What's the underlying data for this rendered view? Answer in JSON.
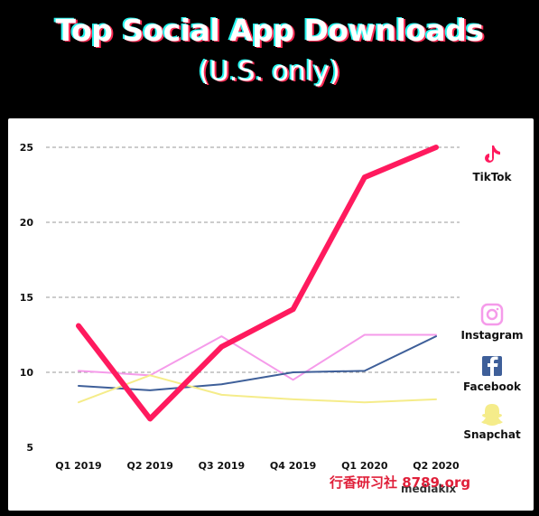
{
  "header": {
    "title": "Top Social App Downloads",
    "subtitle": "(U.S. only)"
  },
  "chart_data": {
    "type": "line",
    "title": "Top Social App Downloads",
    "subtitle": "(U.S. only)",
    "categories": [
      "Q1 2019",
      "Q2 2019",
      "Q3 2019",
      "Q4 2019",
      "Q1 2020",
      "Q2 2020"
    ],
    "yticks": [
      5,
      10,
      15,
      20,
      25
    ],
    "ylim": [
      5,
      25
    ],
    "grid": "horizontal dashed",
    "legend_position": "right",
    "series": [
      {
        "name": "TikTok",
        "color": "#ff1a5e",
        "width": 6,
        "icon": "tiktok-icon",
        "values": [
          13.1,
          6.9,
          11.7,
          14.2,
          23.0,
          25.0
        ]
      },
      {
        "name": "Instagram",
        "color": "#f59bea",
        "width": 2,
        "icon": "instagram-icon",
        "values": [
          10.1,
          9.8,
          12.4,
          9.5,
          12.5,
          12.5
        ]
      },
      {
        "name": "Facebook",
        "color": "#3e5f99",
        "width": 2,
        "icon": "facebook-icon",
        "values": [
          9.1,
          8.8,
          9.2,
          10.0,
          10.1,
          12.4
        ]
      },
      {
        "name": "Snapchat",
        "color": "#f5ec8a",
        "width": 2,
        "icon": "snapchat-icon",
        "values": [
          8.0,
          9.8,
          8.5,
          8.2,
          8.0,
          8.2
        ]
      }
    ]
  },
  "watermark": {
    "text": "行香研习社 8789.org",
    "brand": "mediakix"
  }
}
